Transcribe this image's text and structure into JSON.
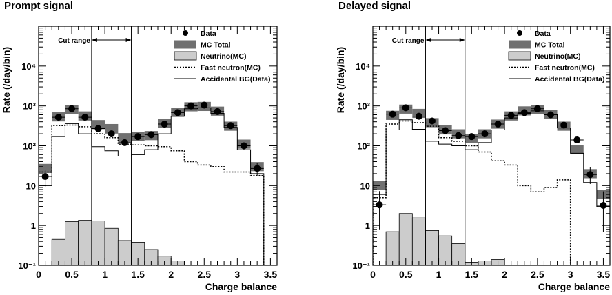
{
  "chart_data": [
    {
      "type": "histogram",
      "title": "Prompt signal",
      "xlabel": "Charge balance",
      "ylabel": "Rate (/day/bin)",
      "xlim": [
        0,
        3.6
      ],
      "ylim": [
        0.1,
        100000
      ],
      "yscale": "log",
      "ytick_labels": [
        "10⁻¹",
        "1",
        "10",
        "10²",
        "10³",
        "10⁴"
      ],
      "xtick_labels": [
        "0",
        "0.5",
        "1",
        "1.5",
        "2",
        "2.5",
        "3",
        "3.5"
      ],
      "grid": false,
      "legend_position": "top-right",
      "cut_range": {
        "label": "Cut range",
        "from": 0.8,
        "to": 1.4
      },
      "bin_edges": [
        0,
        0.2,
        0.4,
        0.6,
        0.8,
        1.0,
        1.2,
        1.4,
        1.6,
        1.8,
        2.0,
        2.2,
        2.4,
        2.6,
        2.8,
        3.0,
        3.2,
        3.4
      ],
      "series": [
        {
          "name": "Data",
          "style": "points",
          "color": "#000000",
          "values": [
            17,
            520,
            850,
            520,
            270,
            200,
            120,
            170,
            190,
            350,
            680,
            1000,
            1050,
            720,
            320,
            100,
            27
          ],
          "errors_low": [
            8,
            30,
            40,
            30,
            20,
            20,
            15,
            15,
            15,
            20,
            30,
            40,
            40,
            30,
            20,
            15,
            10
          ],
          "errors_high": [
            8,
            30,
            40,
            30,
            20,
            20,
            15,
            15,
            15,
            20,
            30,
            40,
            40,
            30,
            20,
            15,
            10
          ]
        },
        {
          "name": "MC Total",
          "style": "band",
          "color": "#707070",
          "values": [
            27,
            530,
            800,
            560,
            340,
            270,
            160,
            170,
            180,
            360,
            690,
            950,
            970,
            740,
            310,
            110,
            30
          ]
        },
        {
          "name": "Neutrino(MC)",
          "style": "filled-histogram",
          "color": "#cccccc",
          "values": [
            0,
            0.45,
            1.25,
            1.35,
            1.3,
            0.85,
            0.42,
            0.38,
            0.25,
            0.17,
            0.13,
            0,
            0,
            0,
            0,
            0,
            0
          ]
        },
        {
          "name": "Fast neutron(MC)",
          "style": "dotted-histogram",
          "color": "#000000",
          "values": [
            22,
            320,
            330,
            300,
            200,
            160,
            110,
            105,
            100,
            95,
            75,
            40,
            33,
            30,
            22,
            22,
            18
          ]
        },
        {
          "name": "Accidental BG(Data)",
          "style": "solid-histogram",
          "color": "#000000",
          "values": [
            10,
            170,
            360,
            200,
            95,
            75,
            55,
            60,
            80,
            200,
            550,
            850,
            900,
            650,
            290,
            80,
            20
          ]
        }
      ]
    },
    {
      "type": "histogram",
      "title": "Delayed signal",
      "xlabel": "Charge balance",
      "ylabel": "Rate (/day/bin)",
      "xlim": [
        0,
        3.6
      ],
      "ylim": [
        0.1,
        100000
      ],
      "yscale": "log",
      "ytick_labels": [
        "10⁻¹",
        "1",
        "10",
        "10²",
        "10³",
        "10⁴"
      ],
      "xtick_labels": [
        "0",
        "0.5",
        "1",
        "1.5",
        "2",
        "2.5",
        "3",
        "3.5"
      ],
      "grid": false,
      "legend_position": "top-right",
      "cut_range": {
        "label": "Cut range",
        "from": 0.8,
        "to": 1.4
      },
      "bin_edges": [
        0,
        0.2,
        0.4,
        0.6,
        0.8,
        1.0,
        1.2,
        1.4,
        1.6,
        1.8,
        2.0,
        2.2,
        2.4,
        2.6,
        2.8,
        3.0,
        3.2,
        3.4,
        3.6
      ],
      "series": [
        {
          "name": "Data",
          "style": "points",
          "color": "#000000",
          "values": [
            3.3,
            620,
            900,
            550,
            420,
            240,
            180,
            170,
            200,
            350,
            580,
            680,
            850,
            600,
            330,
            140,
            19,
            3.2
          ],
          "errors_low": [
            2.5,
            30,
            40,
            30,
            25,
            20,
            15,
            15,
            15,
            20,
            30,
            30,
            35,
            30,
            20,
            15,
            8,
            2.5
          ],
          "errors_high": [
            4,
            30,
            40,
            30,
            25,
            20,
            15,
            15,
            15,
            20,
            30,
            30,
            35,
            30,
            20,
            15,
            10,
            4
          ]
        },
        {
          "name": "MC Total",
          "style": "band",
          "color": "#707070",
          "values": [
            10,
            580,
            830,
            650,
            380,
            250,
            200,
            150,
            200,
            350,
            560,
            750,
            800,
            620,
            310,
            80,
            20,
            6
          ]
        },
        {
          "name": "Neutrino(MC)",
          "style": "filled-histogram",
          "color": "#cccccc",
          "values": [
            0,
            0.7,
            2.0,
            1.55,
            0.75,
            0.55,
            0.35,
            0.12,
            0.13,
            0.14,
            0,
            0,
            0,
            0,
            0,
            0,
            0,
            0
          ]
        },
        {
          "name": "Fast neutron(MC)",
          "style": "dotted-histogram",
          "color": "#000000",
          "values": [
            5,
            350,
            420,
            380,
            310,
            160,
            130,
            100,
            70,
            42,
            33,
            10,
            7,
            9,
            14,
            0.1,
            0,
            0
          ]
        },
        {
          "name": "Accidental BG(Data)",
          "style": "solid-histogram",
          "color": "#000000",
          "values": [
            6,
            250,
            450,
            260,
            130,
            110,
            100,
            80,
            120,
            250,
            500,
            650,
            750,
            600,
            280,
            65,
            12,
            3
          ]
        }
      ]
    }
  ]
}
